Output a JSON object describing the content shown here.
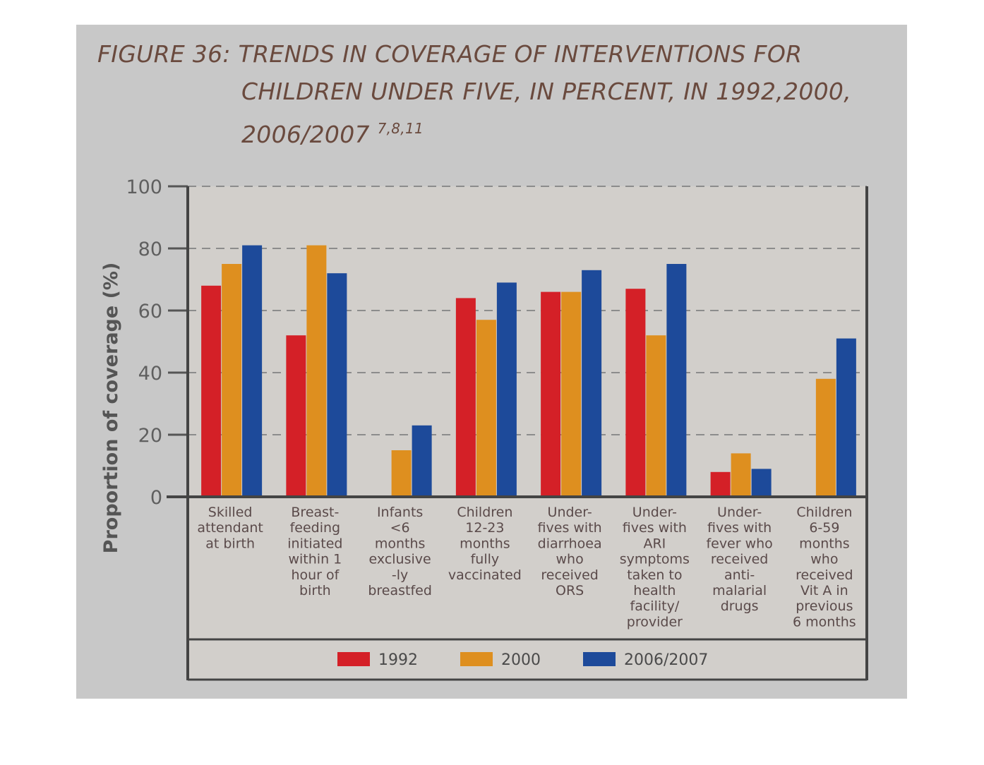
{
  "figure": {
    "title_line1": "FIGURE 36: TRENDS IN COVERAGE OF INTERVENTIONS FOR",
    "title_line2": "CHILDREN UNDER FIVE, IN PERCENT, IN 1992,2000,",
    "title_line3": "2006/2007",
    "title_refs": "7,8,11"
  },
  "chart_data": {
    "type": "bar",
    "title": "FIGURE 36: TRENDS IN COVERAGE OF INTERVENTIONS FOR CHILDREN UNDER FIVE, IN PERCENT, IN 1992,2000, 2006/2007",
    "ylabel": "Proportion of coverage (%)",
    "xlabel": "",
    "ylim": [
      0,
      100
    ],
    "yticks": [
      0,
      20,
      40,
      60,
      80,
      100
    ],
    "grid": true,
    "legend_position": "bottom",
    "categories": [
      [
        "Skilled",
        "attendant",
        "at birth"
      ],
      [
        "Breast-",
        "feeding",
        "initiated",
        "within 1",
        "hour of",
        "birth"
      ],
      [
        "Infants",
        "<6",
        "months",
        "exclusive",
        "-ly",
        "breastfed"
      ],
      [
        "Children",
        "12-23",
        "months",
        "fully",
        "vaccinated"
      ],
      [
        "Under-",
        "fives with",
        "diarrhoea",
        "who",
        "received",
        "ORS"
      ],
      [
        "Under-",
        "fives with",
        "ARI",
        "symptoms",
        "taken to",
        "health",
        "facility/",
        "provider"
      ],
      [
        "Under-",
        "fives with",
        "fever who",
        "received",
        "anti-",
        "malarial",
        "drugs"
      ],
      [
        "Children",
        "6-59",
        "months",
        "who",
        "received",
        "Vit A in",
        "previous",
        "6 months"
      ]
    ],
    "series": [
      {
        "name": "1992",
        "color": "#d42027",
        "values": [
          68,
          52,
          null,
          64,
          66,
          67,
          8,
          null
        ]
      },
      {
        "name": "2000",
        "color": "#de8f1f",
        "values": [
          75,
          81,
          15,
          57,
          66,
          52,
          14,
          38
        ]
      },
      {
        "name": "2006/2007",
        "color": "#1d4a9a",
        "values": [
          81,
          72,
          23,
          69,
          73,
          75,
          9,
          51
        ]
      }
    ]
  }
}
